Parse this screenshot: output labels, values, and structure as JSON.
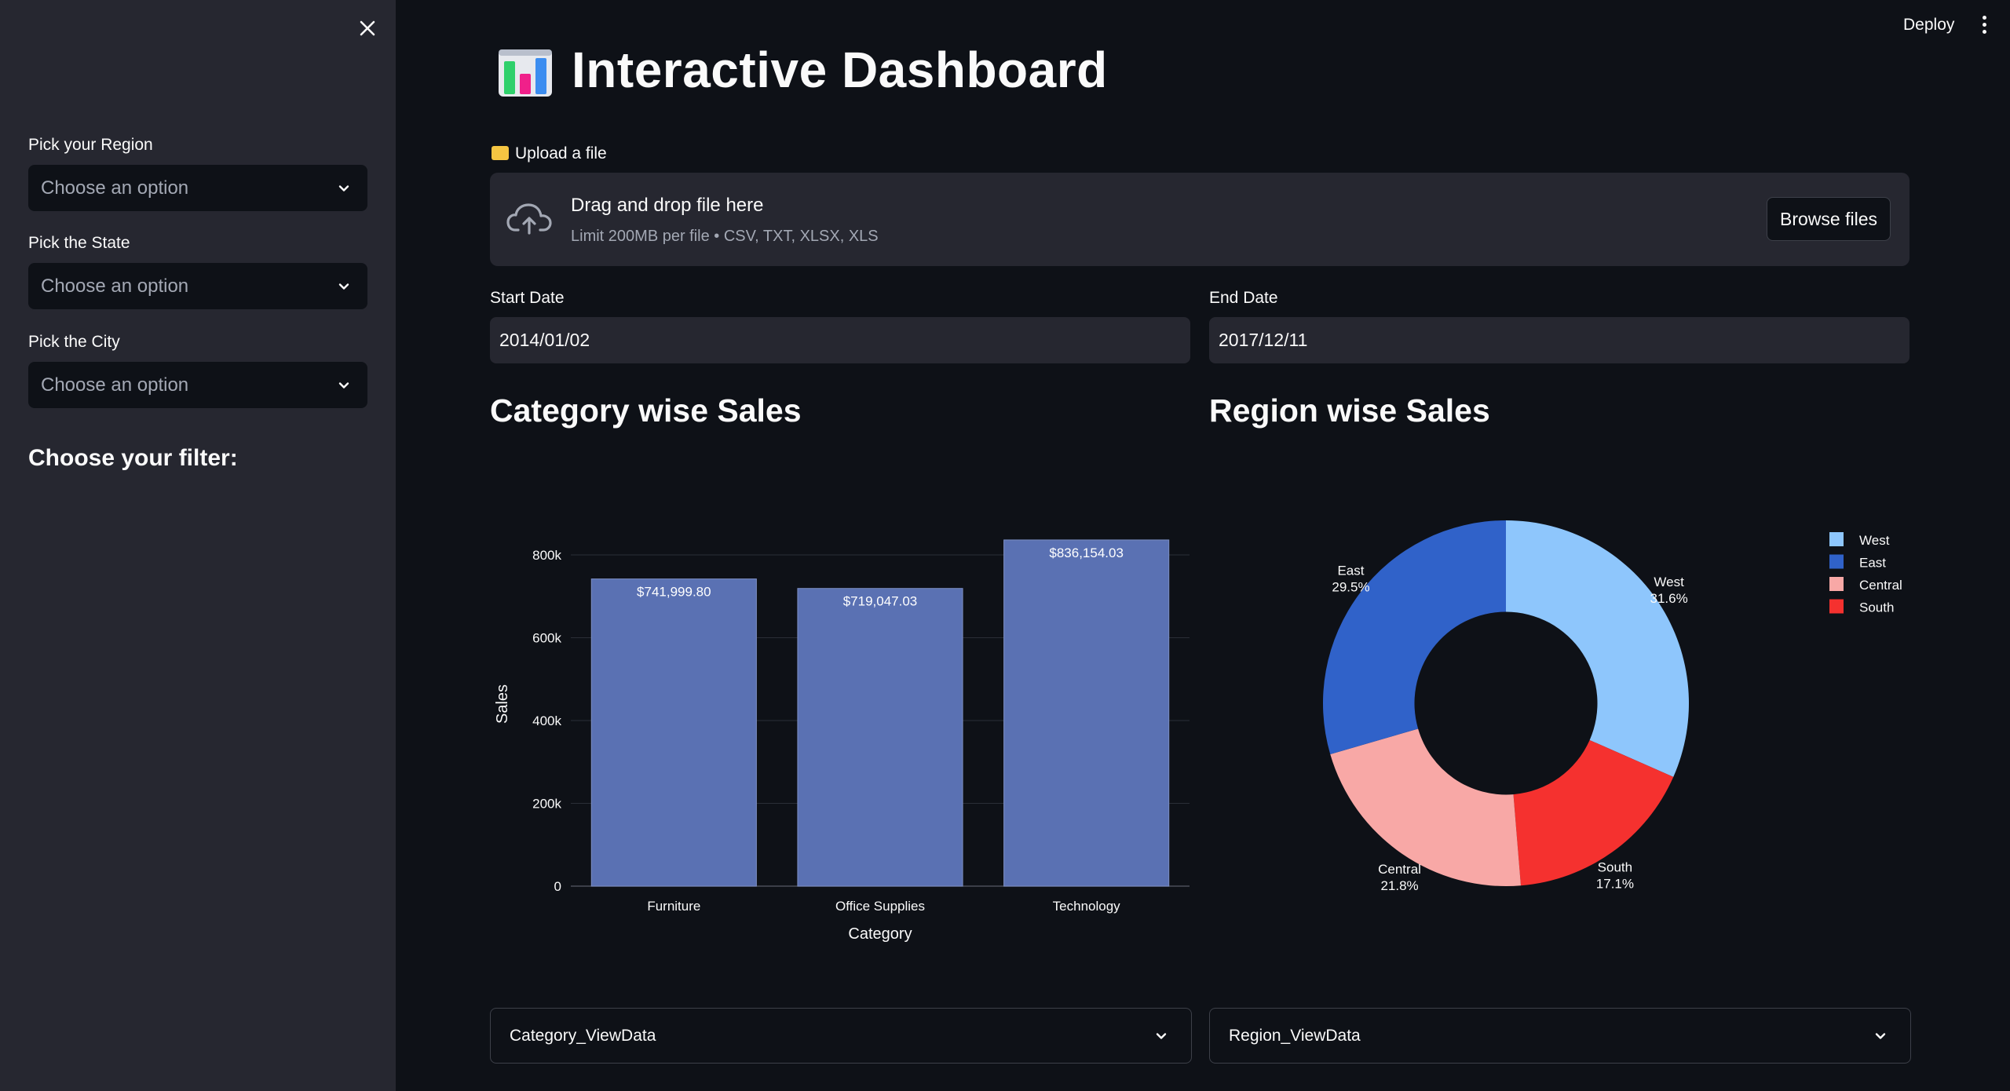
{
  "sidebar": {
    "filters": [
      {
        "label": "Pick your Region",
        "placeholder": "Choose an option"
      },
      {
        "label": "Pick the State",
        "placeholder": "Choose an option"
      },
      {
        "label": "Pick the City",
        "placeholder": "Choose an option"
      }
    ],
    "filter_heading": "Choose your filter:"
  },
  "header": {
    "deploy_label": "Deploy"
  },
  "title": "Interactive Dashboard",
  "upload": {
    "label": "Upload a file",
    "drop_text": "Drag and drop file here",
    "limit_text": "Limit 200MB per file • CSV, TXT, XLSX, XLS",
    "browse_label": "Browse files"
  },
  "dates": {
    "start_label": "Start Date",
    "start_value": "2014/01/02",
    "end_label": "End Date",
    "end_value": "2017/12/11"
  },
  "sections": {
    "category_heading": "Category wise Sales",
    "region_heading": "Region wise Sales"
  },
  "chart_data": [
    {
      "type": "bar",
      "categories": [
        "Furniture",
        "Office Supplies",
        "Technology"
      ],
      "values": [
        741999.8,
        719047.03,
        836154.03
      ],
      "data_labels": [
        "$741,999.80",
        "$719,047.03",
        "$836,154.03"
      ],
      "xlabel": "Category",
      "ylabel": "Sales",
      "yticks": [
        0,
        200000,
        400000,
        600000,
        800000
      ],
      "ytick_labels": [
        "0",
        "200k",
        "400k",
        "600k",
        "800k"
      ],
      "ylim": [
        0,
        880000
      ],
      "bar_color": "#5a71b3",
      "grid": true
    },
    {
      "type": "pie",
      "hole": 0.5,
      "labels": [
        "West",
        "East",
        "Central",
        "South"
      ],
      "values": [
        31.6,
        29.5,
        21.8,
        17.1
      ],
      "pct_labels": [
        "31.6%",
        "29.5%",
        "21.8%",
        "17.1%"
      ],
      "colors": {
        "West": "#8ec6fc",
        "East": "#3062c9",
        "Central": "#f8a8a6",
        "South": "#f5312f"
      },
      "slice_order": [
        "West",
        "South",
        "Central",
        "East"
      ],
      "legend_position": "top-right"
    }
  ],
  "expanders": {
    "category": "Category_ViewData",
    "region": "Region_ViewData"
  },
  "colors": {
    "background": "#0e1117",
    "sidebar": "#262730",
    "text": "#fafafa",
    "muted": "#a3a8b4"
  }
}
